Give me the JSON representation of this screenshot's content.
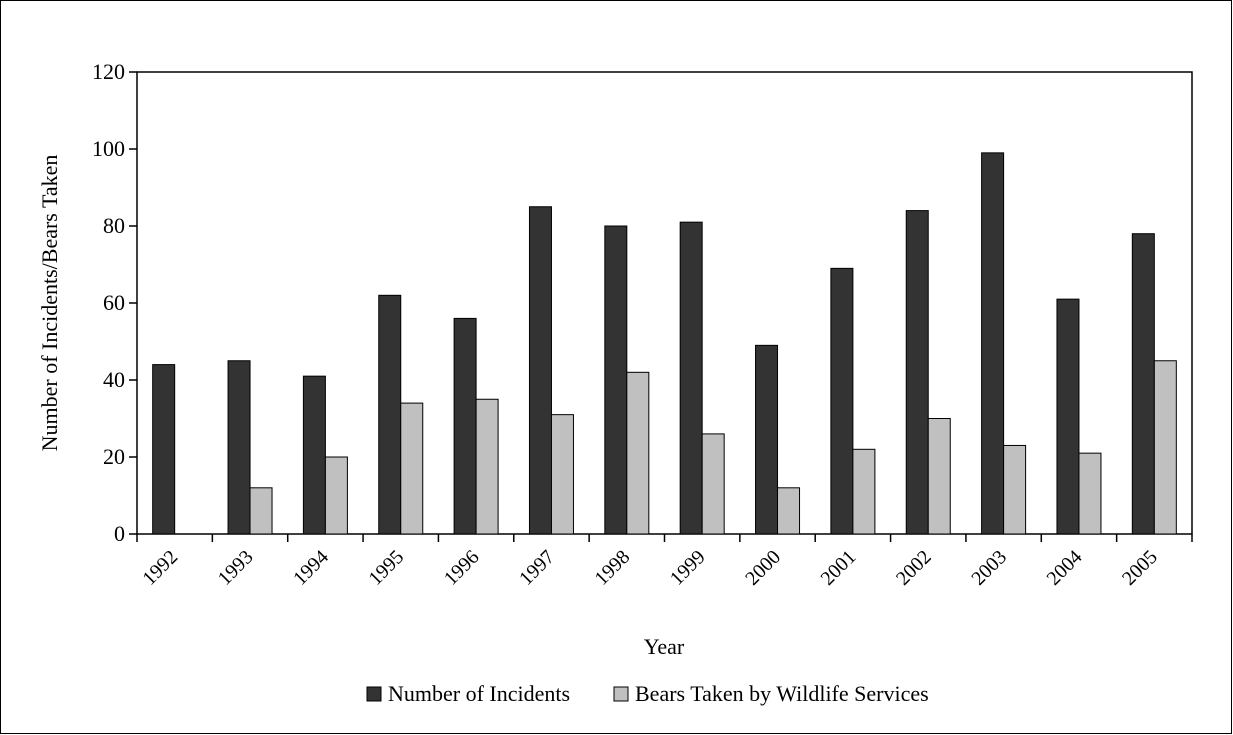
{
  "chart_data": {
    "type": "bar",
    "title": "",
    "xlabel": "Year",
    "ylabel": "Number of Incidents/Bears Taken",
    "ylim": [
      0,
      120
    ],
    "yticks": [
      0,
      20,
      40,
      60,
      80,
      100,
      120
    ],
    "categories": [
      "1992",
      "1993",
      "1994",
      "1995",
      "1996",
      "1997",
      "1998",
      "1999",
      "2000",
      "2001",
      "2002",
      "2003",
      "2004",
      "2005"
    ],
    "series": [
      {
        "name": "Number of Incidents",
        "color": "#333333",
        "values": [
          44,
          45,
          41,
          62,
          56,
          85,
          80,
          81,
          49,
          69,
          84,
          99,
          61,
          78
        ]
      },
      {
        "name": "Bears Taken by Wildlife Services",
        "color": "#c0c0c0",
        "values": [
          0,
          12,
          20,
          34,
          35,
          31,
          42,
          26,
          12,
          22,
          30,
          23,
          21,
          45
        ]
      }
    ],
    "grid": false,
    "legend_position": "bottom"
  }
}
